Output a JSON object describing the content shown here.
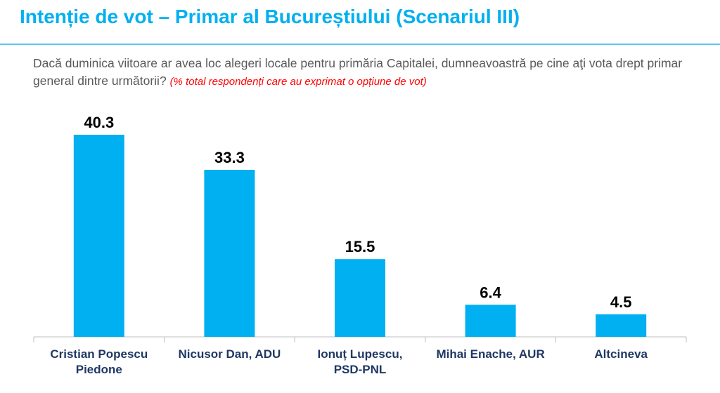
{
  "title": "Intenție de vot – Primar al Bucureștiului (Scenariul III)",
  "subtitle": "Dacă duminica viitoare ar avea loc alegeri locale pentru primăria Capitalei,  dumneavoastră pe cine aţi vota drept primar general dintre următorii?",
  "subtitle_note": "(% total respondenți care au exprimat o opțiune de vot)",
  "colors": {
    "title": "#00b0f0",
    "bar": "#00b0f0",
    "note": "#ff0000",
    "category_text": "#1f3864"
  },
  "chart_data": {
    "type": "bar",
    "categories": [
      [
        "Cristian Popescu",
        "Piedone"
      ],
      [
        "Nicusor Dan, ADU"
      ],
      [
        "Ionuț Lupescu,",
        "PSD-PNL"
      ],
      [
        "Mihai Enache, AUR"
      ],
      [
        "Altcineva"
      ]
    ],
    "values": [
      40.3,
      33.3,
      15.5,
      6.4,
      4.5
    ],
    "value_labels": [
      "40.3",
      "33.3",
      "15.5",
      "6.4",
      "4.5"
    ],
    "ylim": [
      0,
      45
    ],
    "grid": false,
    "legend": "none"
  }
}
